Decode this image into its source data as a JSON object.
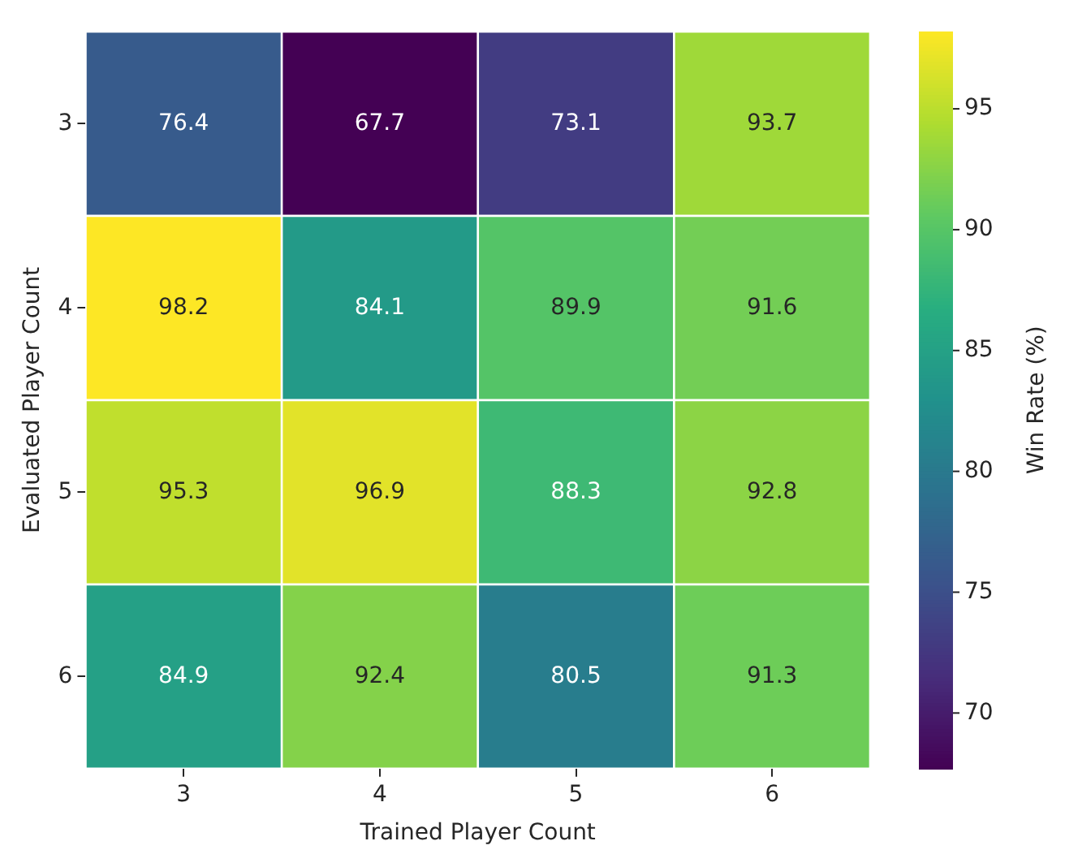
{
  "chart_data": {
    "type": "heatmap",
    "xlabel": "Trained Player Count",
    "ylabel": "Evaluated Player Count",
    "clabel": "Win Rate (%)",
    "categories": [
      "3",
      "4",
      "5",
      "6"
    ],
    "y_categories": [
      "3",
      "4",
      "5",
      "6"
    ],
    "cells": [
      [
        76.4,
        67.7,
        73.1,
        93.7
      ],
      [
        98.2,
        84.1,
        89.9,
        91.6
      ],
      [
        95.3,
        96.9,
        88.3,
        92.8
      ],
      [
        84.9,
        92.4,
        80.5,
        91.3
      ]
    ],
    "clim": [
      67.7,
      98.2
    ],
    "cticks": [
      70,
      75,
      80,
      85,
      90,
      95
    ],
    "data_labels": true
  }
}
